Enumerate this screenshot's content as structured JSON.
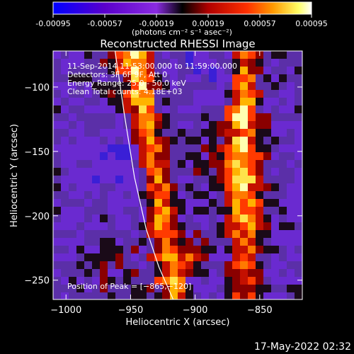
{
  "chart_data": {
    "type": "heatmap",
    "title": "Reconstructed RHESSI Image",
    "xlabel": "Heliocentric X (arcsec)",
    "ylabel": "Heliocentric Y (arcsec)",
    "xlim": [
      -1010,
      -817
    ],
    "ylim": [
      -265,
      -72
    ],
    "x_ticks": [
      -1000,
      -950,
      -900,
      -850
    ],
    "x_tick_labels": [
      "−1000",
      "−950",
      "−900",
      "−850"
    ],
    "y_ticks": [
      -250,
      -200,
      -150,
      -100
    ],
    "y_tick_labels": [
      "−250",
      "−200",
      "−150",
      "−100"
    ],
    "colorbar": {
      "range": [
        -0.00095,
        0.00095
      ],
      "ticks": [
        "-0.00095",
        "-0.00057",
        "-0.00019",
        "0.00019",
        "0.00057",
        "0.00095"
      ],
      "label": "(photons cm⁻² s⁻¹ asec⁻²)",
      "colors": [
        "#0000ff",
        "#5a00cc",
        "#8a2be2",
        "#000000",
        "#b00000",
        "#ff3000",
        "#ff9900",
        "#ffff66",
        "#ffffff"
      ]
    },
    "annotations": {
      "time": "11-Sep-2014 11:53:00.000 to 11:59:00.000",
      "detectors": "Detectors: 3F 6F 9F, Att 0",
      "energy": "Energy Range: 25.0 - 50.0 keV",
      "method": "Clean    Total counts: 4.18E+03",
      "peak": "Position of Peak = [−865,−120]"
    },
    "limb": [
      [
        -962,
        -72
      ],
      [
        -955,
        -120
      ],
      [
        -947,
        -170
      ],
      [
        -938,
        -210
      ],
      [
        -928,
        -240
      ],
      [
        -917,
        -265
      ]
    ],
    "peak": [
      -865,
      -120
    ]
  },
  "timestamp": "17-May-2022 02:32"
}
